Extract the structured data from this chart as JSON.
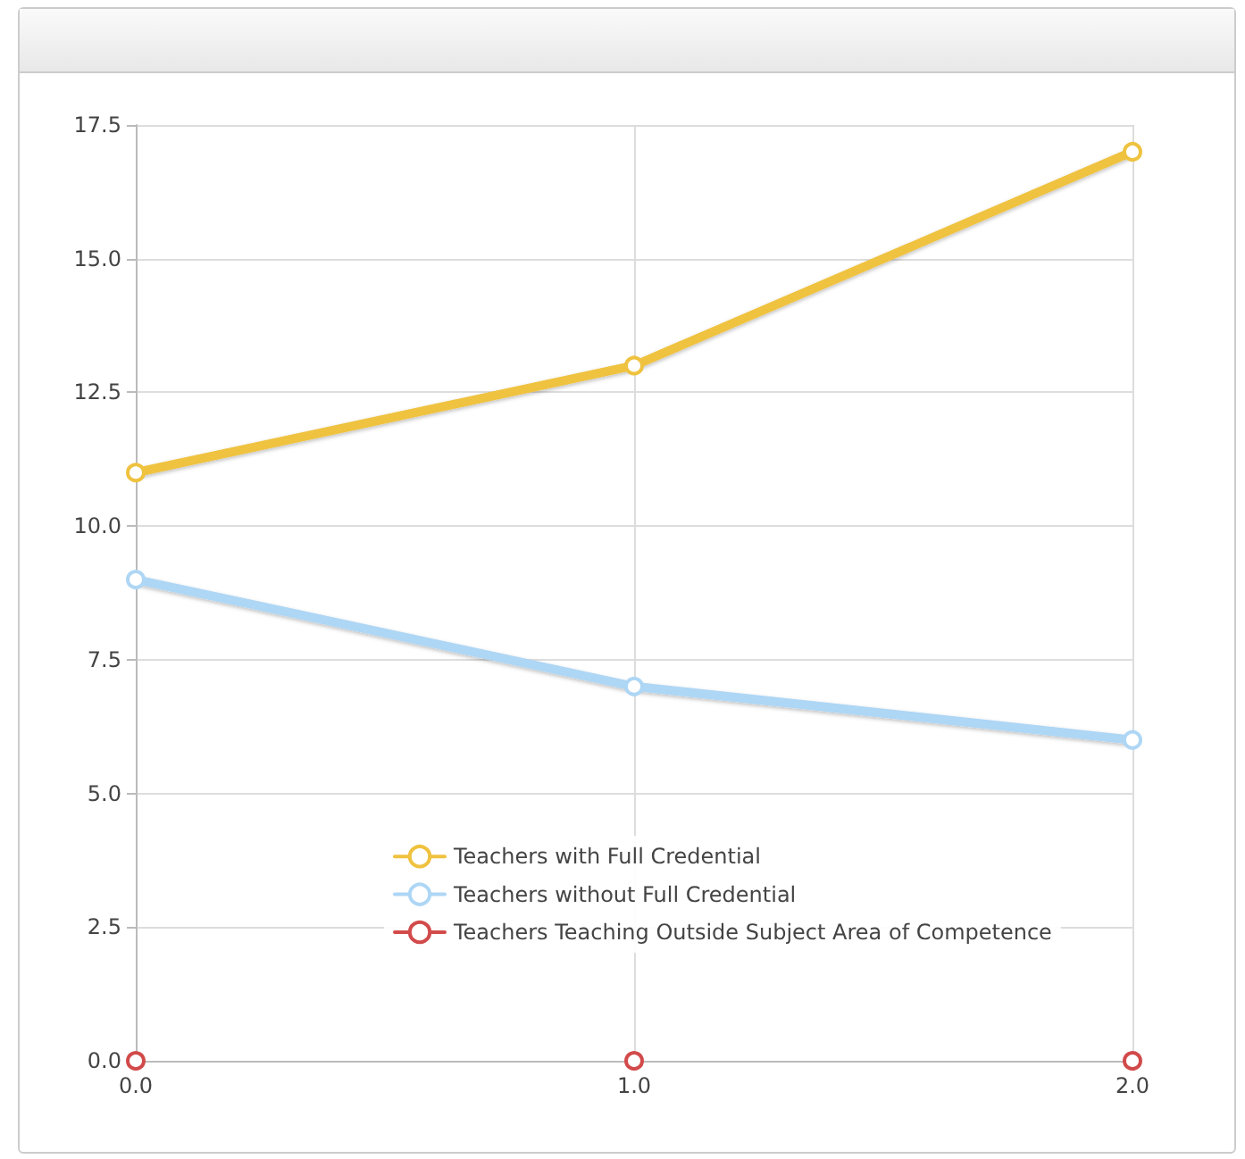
{
  "chart_data": {
    "type": "line",
    "x": [
      0,
      1,
      2
    ],
    "series": [
      {
        "name": "Teachers with Full Credential",
        "color": "#efc23f",
        "values": [
          11,
          13,
          17
        ]
      },
      {
        "name": "Teachers without Full Credential",
        "color": "#aed6f5",
        "values": [
          9,
          7,
          6
        ]
      },
      {
        "name": "Teachers Teaching Outside Subject Area of Competence",
        "color": "#d24a4a",
        "values": [
          0,
          0,
          0
        ]
      }
    ],
    "xlim": [
      0,
      2
    ],
    "xticks": [
      {
        "value": 0,
        "label": "0.0"
      },
      {
        "value": 1,
        "label": "1.0"
      },
      {
        "value": 2,
        "label": "2.0"
      }
    ],
    "ylim": [
      0,
      17.5
    ],
    "yticks": [
      {
        "value": 0,
        "label": "0.0"
      },
      {
        "value": 2.5,
        "label": "2.5"
      },
      {
        "value": 5,
        "label": "5.0"
      },
      {
        "value": 7.5,
        "label": "7.5"
      },
      {
        "value": 10,
        "label": "10.0"
      },
      {
        "value": 12.5,
        "label": "12.5"
      },
      {
        "value": 15,
        "label": "15.0"
      },
      {
        "value": 17.5,
        "label": "17.5"
      }
    ],
    "grid": true,
    "legend": "bottom",
    "marker": "circle",
    "line_style": "solid"
  }
}
